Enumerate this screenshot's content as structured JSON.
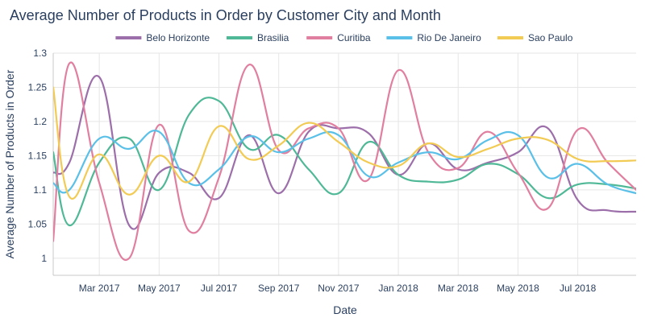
{
  "chart_data": {
    "type": "line",
    "title": "Average Number of Products in Order by Customer City and Month",
    "xlabel": "Date",
    "ylabel": "Average Number of Products in Order",
    "ylim": [
      0.975,
      1.3
    ],
    "yticks": [
      1,
      1.05,
      1.1,
      1.15,
      1.2,
      1.25,
      1.3
    ],
    "ytick_labels": [
      "1",
      "1.05",
      "1.1",
      "1.15",
      "1.2",
      "1.25",
      "1.3"
    ],
    "xticks": [
      {
        "date": "2017-03",
        "label": "Mar 2017"
      },
      {
        "date": "2017-05",
        "label": "May 2017"
      },
      {
        "date": "2017-07",
        "label": "Jul 2017"
      },
      {
        "date": "2017-09",
        "label": "Sep 2017"
      },
      {
        "date": "2017-11",
        "label": "Nov 2017"
      },
      {
        "date": "2018-01",
        "label": "Jan 2018"
      },
      {
        "date": "2018-03",
        "label": "Mar 2018"
      },
      {
        "date": "2018-05",
        "label": "May 2018"
      },
      {
        "date": "2018-07",
        "label": "Jul 2018"
      }
    ],
    "x": [
      "2017-01-15",
      "2017-02",
      "2017-03",
      "2017-04",
      "2017-05",
      "2017-06",
      "2017-07",
      "2017-08",
      "2017-09",
      "2017-10",
      "2017-11",
      "2017-12",
      "2018-01",
      "2018-02",
      "2018-03",
      "2018-04",
      "2018-05",
      "2018-06",
      "2018-07",
      "2018-08",
      "2018-08-30"
    ],
    "legend_position": "top",
    "grid": true,
    "series": [
      {
        "name": "Belo Horizonte",
        "color": "#9d6faa",
        "values": [
          1.125,
          1.14,
          1.265,
          1.048,
          1.125,
          1.125,
          1.088,
          1.18,
          1.095,
          1.185,
          1.19,
          1.183,
          1.122,
          1.168,
          1.13,
          1.14,
          1.155,
          1.19,
          1.085,
          1.07,
          1.068
        ]
      },
      {
        "name": "Brasilia",
        "color": "#4fb896",
        "values": [
          1.155,
          1.048,
          1.14,
          1.175,
          1.1,
          1.21,
          1.23,
          1.16,
          1.18,
          1.13,
          1.095,
          1.17,
          1.122,
          1.112,
          1.115,
          1.138,
          1.123,
          1.088,
          1.108,
          1.108,
          1.102
        ]
      },
      {
        "name": "Curitiba",
        "color": "#e17fa0",
        "values": [
          1.025,
          1.285,
          1.11,
          1.0,
          1.195,
          1.04,
          1.118,
          1.283,
          1.158,
          1.19,
          1.19,
          1.115,
          1.275,
          1.155,
          1.132,
          1.185,
          1.125,
          1.073,
          1.188,
          1.14,
          1.1
        ]
      },
      {
        "name": "Rio De Janeiro",
        "color": "#5ac0e8",
        "values": [
          1.11,
          1.1,
          1.175,
          1.16,
          1.185,
          1.11,
          1.13,
          1.178,
          1.155,
          1.175,
          1.18,
          1.12,
          1.14,
          1.155,
          1.145,
          1.173,
          1.18,
          1.118,
          1.138,
          1.108,
          1.095
        ]
      },
      {
        "name": "Sao Paulo",
        "color": "#f2cb54",
        "values": [
          1.25,
          1.09,
          1.152,
          1.093,
          1.15,
          1.112,
          1.193,
          1.145,
          1.165,
          1.198,
          1.17,
          1.14,
          1.135,
          1.168,
          1.148,
          1.16,
          1.175,
          1.173,
          1.145,
          1.142,
          1.143
        ]
      }
    ]
  }
}
